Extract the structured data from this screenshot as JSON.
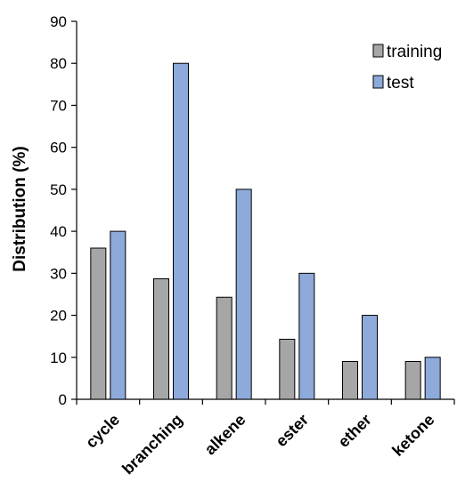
{
  "chart_data": {
    "type": "bar",
    "title": "",
    "xlabel": "",
    "ylabel": "Distribution (%)",
    "ylim": [
      0,
      90
    ],
    "yticks": [
      0,
      10,
      20,
      30,
      40,
      50,
      60,
      70,
      80,
      90
    ],
    "grid": false,
    "legend_position": "top-right",
    "categories": [
      "cycle",
      "branching",
      "alkene",
      "ester",
      "ether",
      "ketone"
    ],
    "series": [
      {
        "name": "training",
        "color": "#a6a6a6",
        "values": [
          36,
          28.7,
          24.3,
          14.3,
          9,
          9
        ]
      },
      {
        "name": "test",
        "color": "#8eaadb",
        "values": [
          40,
          80,
          50,
          30,
          20,
          10
        ]
      }
    ]
  }
}
